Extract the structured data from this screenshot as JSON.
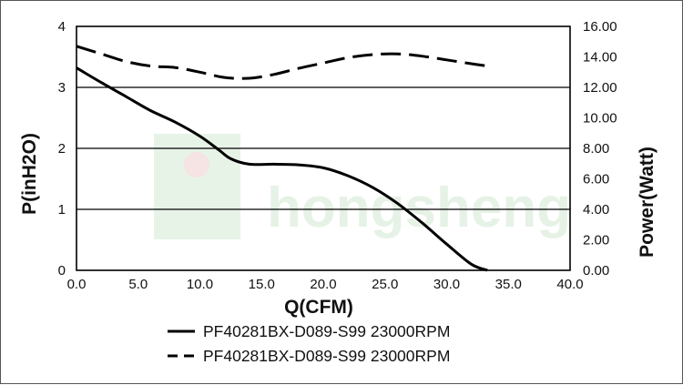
{
  "chart_data": {
    "type": "line",
    "xlabel": "Q(CFM)",
    "ylabel": "P(inH2O)",
    "y2label": "Power(Watt)",
    "xlim": [
      0,
      40
    ],
    "ylim": [
      0,
      4
    ],
    "y2lim": [
      0,
      16
    ],
    "x_ticks": [
      "0.0",
      "5.0",
      "10.0",
      "15.0",
      "20.0",
      "25.0",
      "30.0",
      "35.0",
      "40.0"
    ],
    "y_ticks": [
      "0",
      "1",
      "2",
      "3",
      "4"
    ],
    "y2_ticks": [
      "0.00",
      "2.00",
      "4.00",
      "6.00",
      "8.00",
      "10.00",
      "12.00",
      "14.00",
      "16.00"
    ],
    "grid": "horizontal",
    "legend_position": "bottom",
    "series": [
      {
        "name": "PF40281BX-D089-S99 23000RPM",
        "axis": "left",
        "style": "solid",
        "x": [
          0,
          2,
          4,
          6,
          8,
          10,
          11.5,
          12.5,
          14,
          16,
          18,
          20,
          22,
          24,
          26,
          28,
          30,
          32,
          33.3
        ],
        "y": [
          3.32,
          3.08,
          2.85,
          2.62,
          2.43,
          2.2,
          1.98,
          1.83,
          1.74,
          1.74,
          1.73,
          1.68,
          1.55,
          1.36,
          1.1,
          0.78,
          0.43,
          0.1,
          0
        ]
      },
      {
        "name": "PF40281BX-D089-S99 23000RPM",
        "axis": "right",
        "style": "dashed",
        "x": [
          0,
          2,
          4,
          6,
          8,
          10,
          12,
          14,
          16,
          18,
          20,
          22,
          24,
          26,
          28,
          30,
          32,
          33.3
        ],
        "y": [
          14.7,
          14.2,
          13.7,
          13.4,
          13.3,
          13.0,
          12.65,
          12.6,
          12.85,
          13.25,
          13.6,
          13.95,
          14.15,
          14.2,
          14.05,
          13.8,
          13.55,
          13.4
        ]
      }
    ]
  },
  "watermark": {
    "text": "hongsheng",
    "color": "#e6f2e6"
  }
}
